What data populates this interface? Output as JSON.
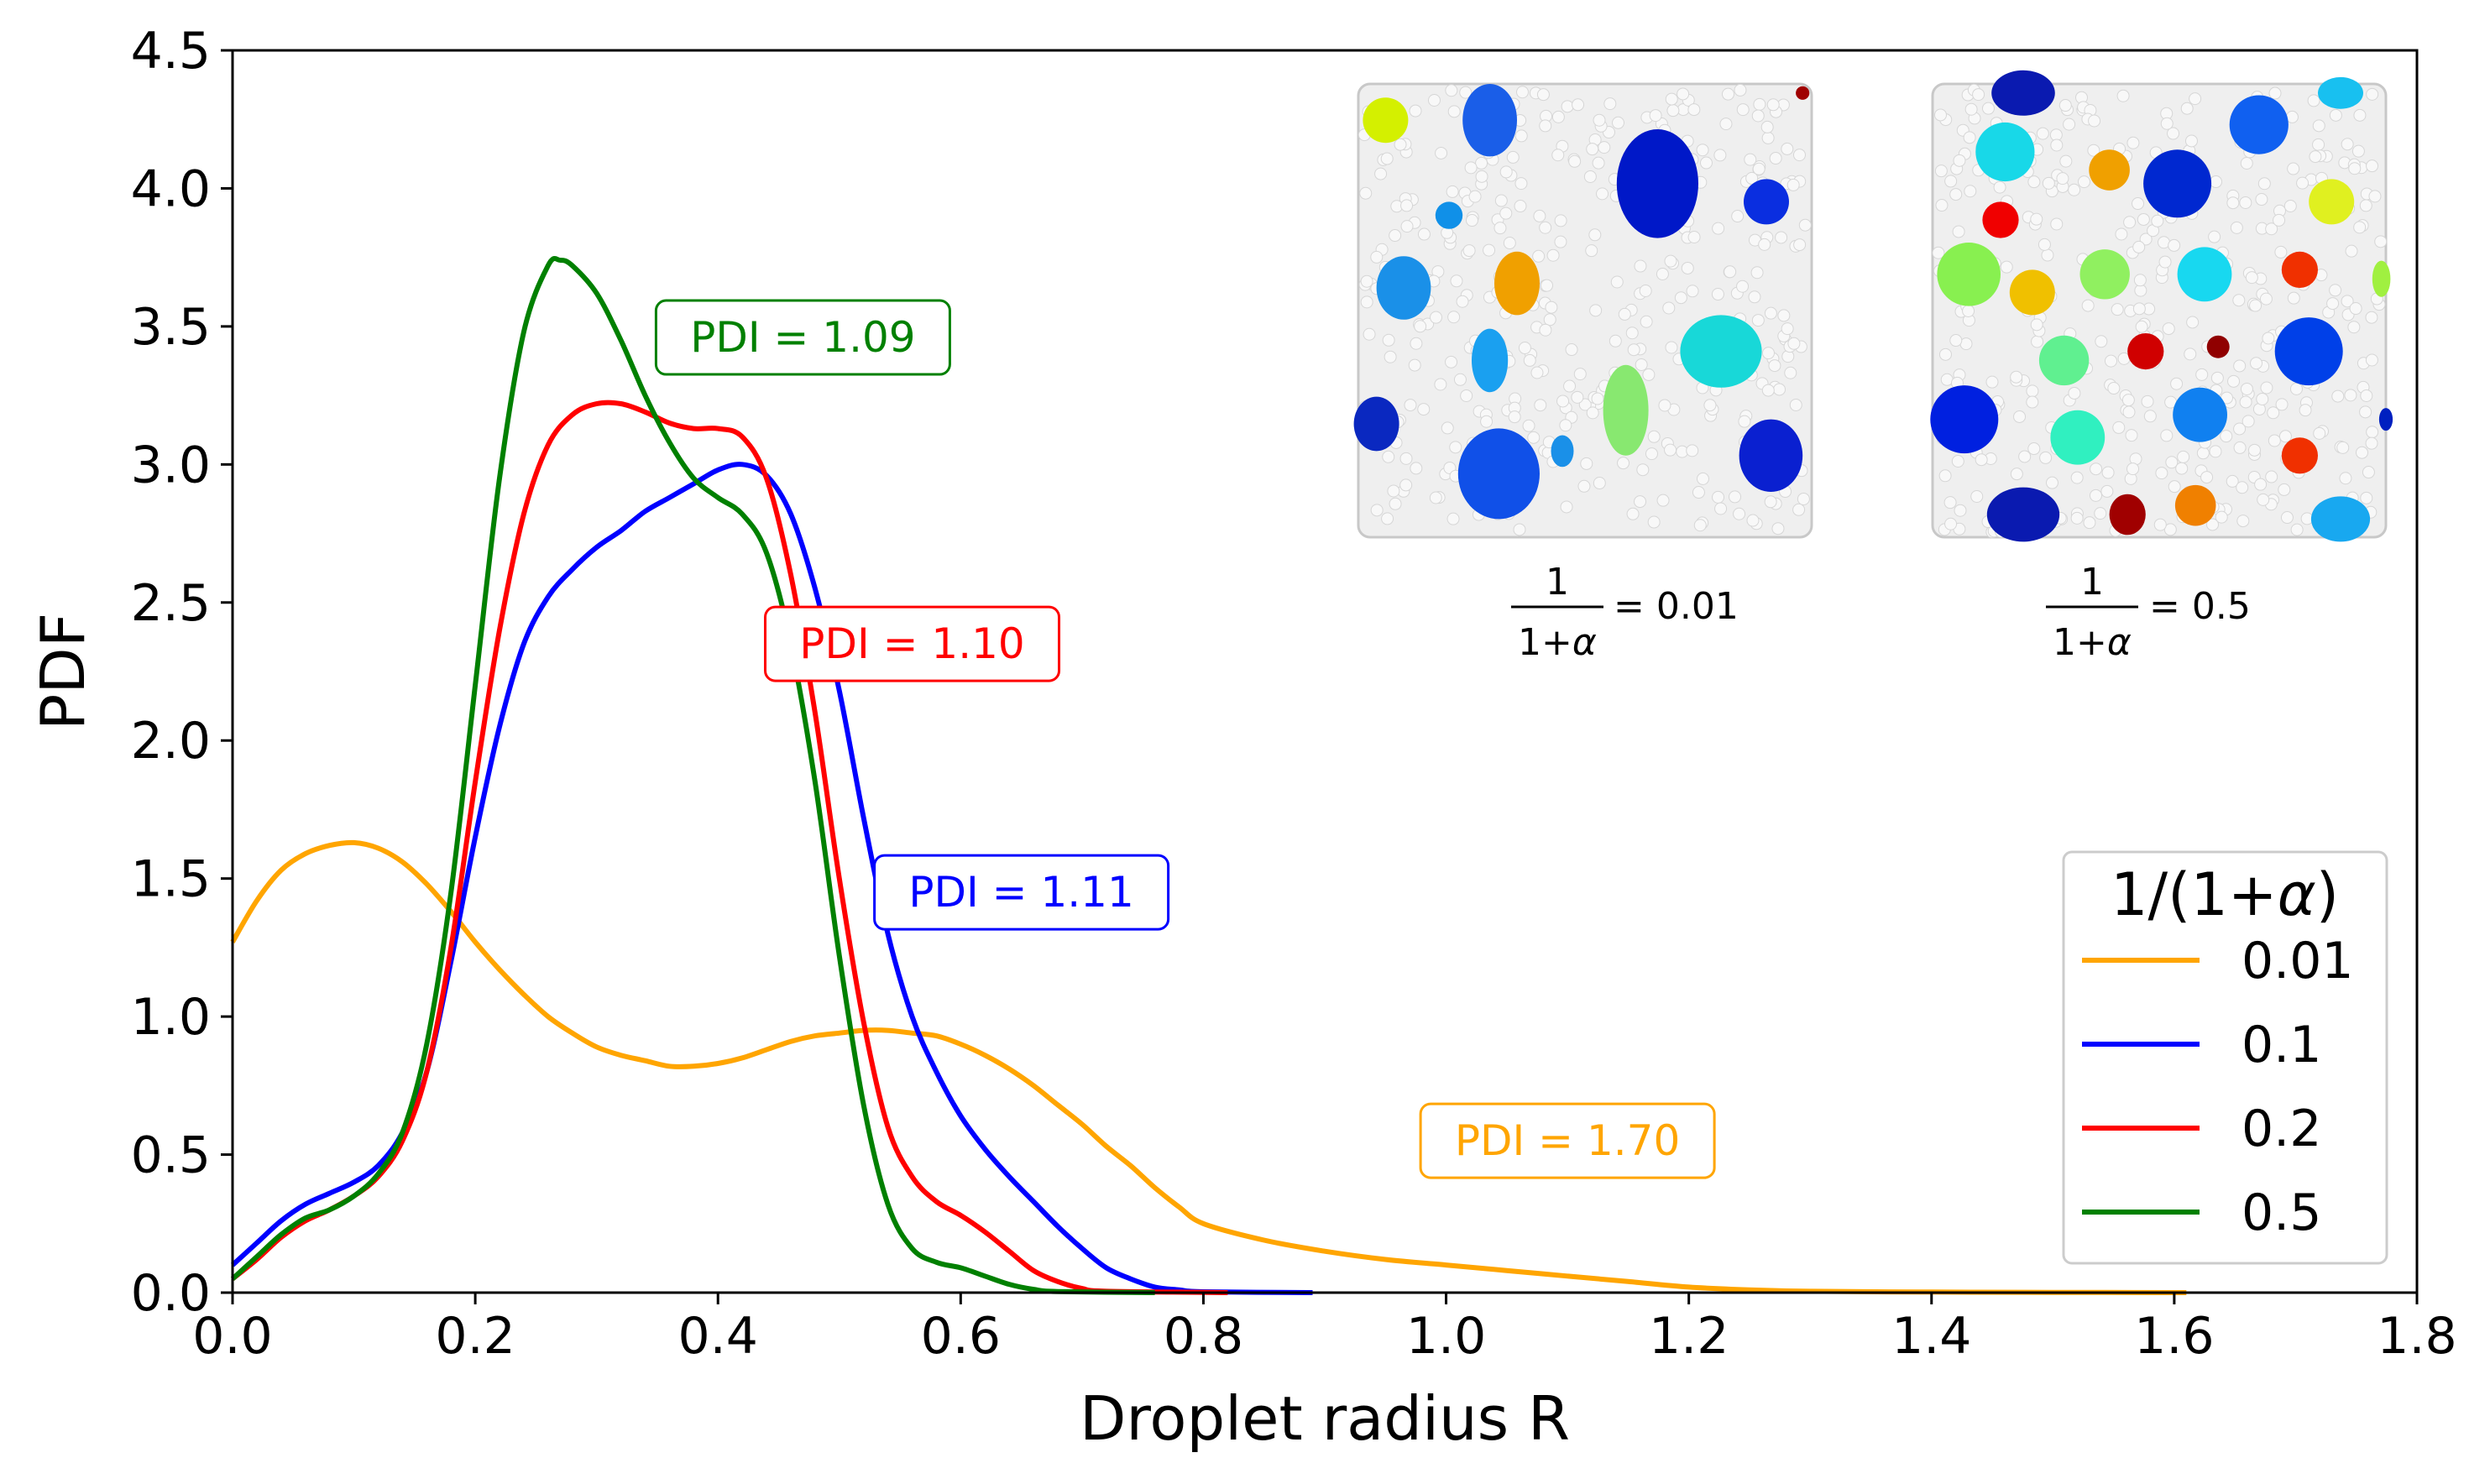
{
  "chart_data": {
    "type": "line",
    "title": "",
    "xlabel": "Droplet radius R",
    "ylabel": "PDF",
    "xlim": [
      0.0,
      1.8
    ],
    "ylim": [
      0.0,
      4.5
    ],
    "xticks": [
      "0.0",
      "0.2",
      "0.4",
      "0.6",
      "0.8",
      "1.0",
      "1.2",
      "1.4",
      "1.6",
      "1.8"
    ],
    "yticks": [
      "0.0",
      "0.5",
      "1.0",
      "1.5",
      "2.0",
      "2.5",
      "3.0",
      "3.5",
      "4.0",
      "4.5"
    ],
    "legend": {
      "title_prefix": "1/(1+",
      "title_symbol": "α",
      "title_suffix": ")",
      "location": "lower right"
    },
    "series": [
      {
        "name": "0.01",
        "color": "#FFA500",
        "pdi_label": "PDI = 1.70",
        "pdi_anchor": [
          1.1,
          0.55
        ],
        "points": [
          [
            0.0,
            1.27
          ],
          [
            0.02,
            1.42
          ],
          [
            0.04,
            1.53
          ],
          [
            0.06,
            1.59
          ],
          [
            0.08,
            1.62
          ],
          [
            0.1,
            1.63
          ],
          [
            0.12,
            1.61
          ],
          [
            0.14,
            1.56
          ],
          [
            0.16,
            1.48
          ],
          [
            0.18,
            1.38
          ],
          [
            0.2,
            1.27
          ],
          [
            0.22,
            1.17
          ],
          [
            0.24,
            1.08
          ],
          [
            0.26,
            1.0
          ],
          [
            0.28,
            0.94
          ],
          [
            0.3,
            0.89
          ],
          [
            0.32,
            0.86
          ],
          [
            0.34,
            0.84
          ],
          [
            0.36,
            0.82
          ],
          [
            0.38,
            0.82
          ],
          [
            0.4,
            0.83
          ],
          [
            0.42,
            0.85
          ],
          [
            0.44,
            0.88
          ],
          [
            0.46,
            0.91
          ],
          [
            0.48,
            0.93
          ],
          [
            0.5,
            0.94
          ],
          [
            0.52,
            0.95
          ],
          [
            0.54,
            0.95
          ],
          [
            0.56,
            0.94
          ],
          [
            0.58,
            0.93
          ],
          [
            0.6,
            0.9
          ],
          [
            0.62,
            0.86
          ],
          [
            0.64,
            0.81
          ],
          [
            0.66,
            0.75
          ],
          [
            0.68,
            0.68
          ],
          [
            0.7,
            0.61
          ],
          [
            0.72,
            0.53
          ],
          [
            0.74,
            0.46
          ],
          [
            0.76,
            0.38
          ],
          [
            0.78,
            0.31
          ],
          [
            0.8,
            0.25
          ],
          [
            0.85,
            0.19
          ],
          [
            0.9,
            0.15
          ],
          [
            0.95,
            0.12
          ],
          [
            1.0,
            0.1
          ],
          [
            1.05,
            0.08
          ],
          [
            1.1,
            0.06
          ],
          [
            1.15,
            0.04
          ],
          [
            1.2,
            0.02
          ],
          [
            1.25,
            0.01
          ],
          [
            1.3,
            0.005
          ],
          [
            1.4,
            0.002
          ],
          [
            1.5,
            0.001
          ],
          [
            1.61,
            0.0
          ]
        ]
      },
      {
        "name": "0.1",
        "color": "#0000FF",
        "pdi_label": "PDI = 1.11",
        "pdi_anchor": [
          0.65,
          1.45
        ],
        "points": [
          [
            0.0,
            0.1
          ],
          [
            0.02,
            0.18
          ],
          [
            0.04,
            0.26
          ],
          [
            0.06,
            0.32
          ],
          [
            0.08,
            0.36
          ],
          [
            0.1,
            0.4
          ],
          [
            0.12,
            0.46
          ],
          [
            0.14,
            0.58
          ],
          [
            0.16,
            0.8
          ],
          [
            0.18,
            1.2
          ],
          [
            0.2,
            1.65
          ],
          [
            0.22,
            2.05
          ],
          [
            0.24,
            2.35
          ],
          [
            0.26,
            2.52
          ],
          [
            0.28,
            2.62
          ],
          [
            0.3,
            2.7
          ],
          [
            0.32,
            2.76
          ],
          [
            0.34,
            2.83
          ],
          [
            0.36,
            2.88
          ],
          [
            0.38,
            2.93
          ],
          [
            0.4,
            2.98
          ],
          [
            0.42,
            3.0
          ],
          [
            0.44,
            2.96
          ],
          [
            0.46,
            2.82
          ],
          [
            0.48,
            2.55
          ],
          [
            0.5,
            2.18
          ],
          [
            0.52,
            1.72
          ],
          [
            0.54,
            1.3
          ],
          [
            0.56,
            1.0
          ],
          [
            0.58,
            0.8
          ],
          [
            0.6,
            0.64
          ],
          [
            0.62,
            0.52
          ],
          [
            0.64,
            0.42
          ],
          [
            0.66,
            0.33
          ],
          [
            0.68,
            0.24
          ],
          [
            0.7,
            0.16
          ],
          [
            0.72,
            0.09
          ],
          [
            0.74,
            0.05
          ],
          [
            0.76,
            0.02
          ],
          [
            0.78,
            0.01
          ],
          [
            0.8,
            0.003
          ],
          [
            0.89,
            0.0
          ]
        ]
      },
      {
        "name": "0.2",
        "color": "#FF0000",
        "pdi_label": "PDI = 1.10",
        "pdi_anchor": [
          0.56,
          2.35
        ],
        "points": [
          [
            0.0,
            0.05
          ],
          [
            0.02,
            0.12
          ],
          [
            0.04,
            0.2
          ],
          [
            0.06,
            0.26
          ],
          [
            0.08,
            0.3
          ],
          [
            0.1,
            0.35
          ],
          [
            0.12,
            0.42
          ],
          [
            0.14,
            0.55
          ],
          [
            0.16,
            0.8
          ],
          [
            0.18,
            1.25
          ],
          [
            0.2,
            1.85
          ],
          [
            0.22,
            2.4
          ],
          [
            0.24,
            2.82
          ],
          [
            0.26,
            3.07
          ],
          [
            0.28,
            3.18
          ],
          [
            0.3,
            3.22
          ],
          [
            0.32,
            3.22
          ],
          [
            0.34,
            3.19
          ],
          [
            0.36,
            3.15
          ],
          [
            0.38,
            3.13
          ],
          [
            0.4,
            3.13
          ],
          [
            0.42,
            3.1
          ],
          [
            0.44,
            2.95
          ],
          [
            0.46,
            2.6
          ],
          [
            0.48,
            2.1
          ],
          [
            0.5,
            1.5
          ],
          [
            0.52,
            0.98
          ],
          [
            0.54,
            0.6
          ],
          [
            0.56,
            0.42
          ],
          [
            0.58,
            0.33
          ],
          [
            0.6,
            0.28
          ],
          [
            0.62,
            0.22
          ],
          [
            0.64,
            0.15
          ],
          [
            0.66,
            0.08
          ],
          [
            0.68,
            0.04
          ],
          [
            0.7,
            0.015
          ],
          [
            0.72,
            0.005
          ],
          [
            0.82,
            0.0
          ]
        ]
      },
      {
        "name": "0.5",
        "color": "#008000",
        "pdi_label": "PDI = 1.09",
        "pdi_anchor": [
          0.47,
          3.46
        ],
        "points": [
          [
            0.0,
            0.05
          ],
          [
            0.02,
            0.13
          ],
          [
            0.04,
            0.21
          ],
          [
            0.06,
            0.27
          ],
          [
            0.08,
            0.3
          ],
          [
            0.1,
            0.35
          ],
          [
            0.12,
            0.43
          ],
          [
            0.14,
            0.58
          ],
          [
            0.16,
            0.9
          ],
          [
            0.18,
            1.45
          ],
          [
            0.2,
            2.2
          ],
          [
            0.22,
            2.95
          ],
          [
            0.24,
            3.48
          ],
          [
            0.26,
            3.72
          ],
          [
            0.27,
            3.74
          ],
          [
            0.28,
            3.72
          ],
          [
            0.3,
            3.62
          ],
          [
            0.32,
            3.45
          ],
          [
            0.34,
            3.25
          ],
          [
            0.36,
            3.08
          ],
          [
            0.38,
            2.95
          ],
          [
            0.4,
            2.88
          ],
          [
            0.42,
            2.82
          ],
          [
            0.44,
            2.68
          ],
          [
            0.46,
            2.35
          ],
          [
            0.48,
            1.85
          ],
          [
            0.5,
            1.22
          ],
          [
            0.52,
            0.68
          ],
          [
            0.54,
            0.32
          ],
          [
            0.56,
            0.16
          ],
          [
            0.58,
            0.11
          ],
          [
            0.6,
            0.09
          ],
          [
            0.62,
            0.06
          ],
          [
            0.64,
            0.03
          ],
          [
            0.66,
            0.012
          ],
          [
            0.68,
            0.004
          ],
          [
            0.76,
            0.0
          ]
        ]
      }
    ],
    "insets": [
      {
        "name": "left",
        "caption_num": "1",
        "caption_den_prefix": "1+",
        "caption_symbol": "α",
        "caption_value": "= 0.01"
      },
      {
        "name": "right",
        "caption_num": "1",
        "caption_den_prefix": "1+",
        "caption_symbol": "α",
        "caption_value": "= 0.5"
      }
    ]
  }
}
